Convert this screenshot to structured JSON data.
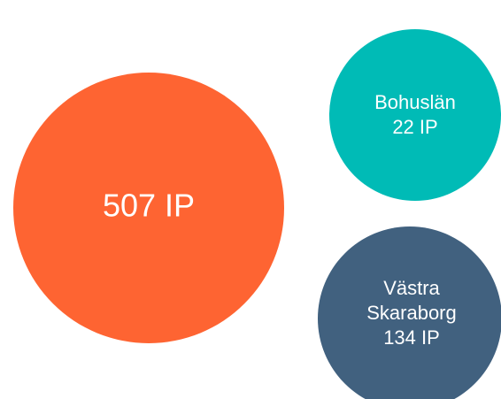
{
  "nodes": [
    {
      "lines": [
        "507 IP"
      ]
    },
    {
      "lines": [
        "Bohuslän",
        "22 IP"
      ]
    },
    {
      "lines": [
        "Västra",
        "Skaraborg",
        "134 IP"
      ]
    }
  ]
}
